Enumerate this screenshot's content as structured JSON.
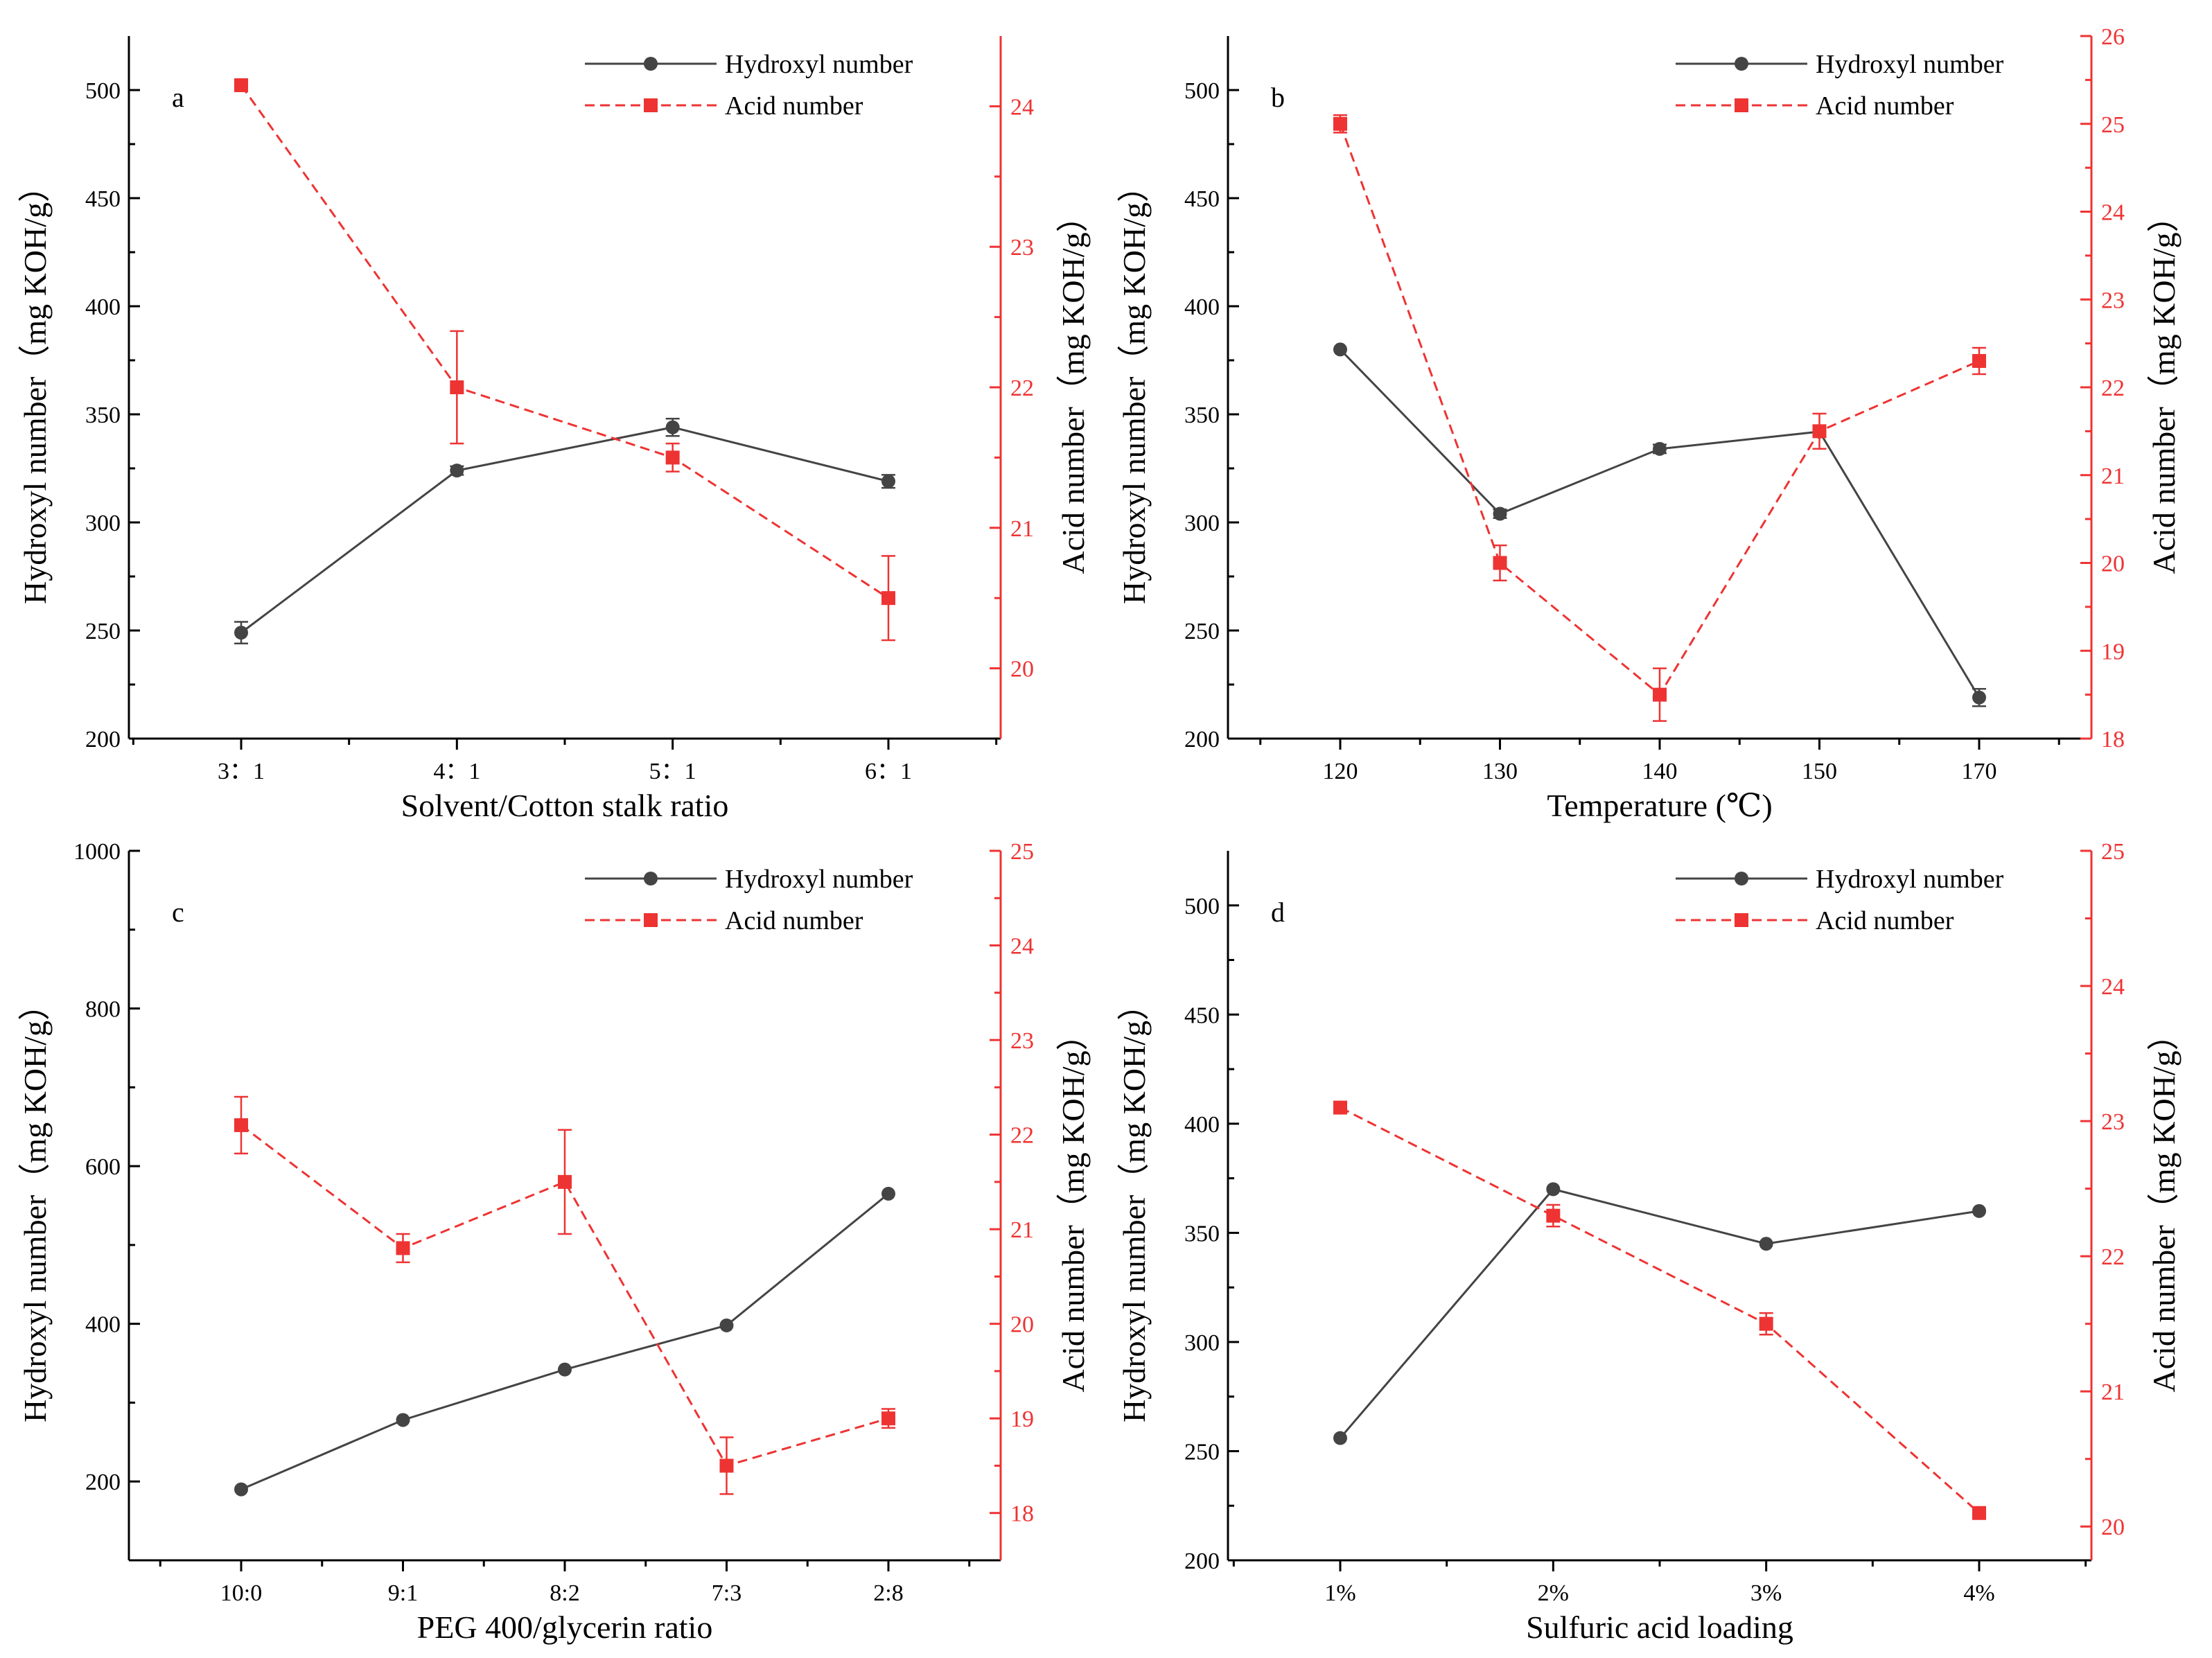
{
  "colors": {
    "hydroxyl": "#444444",
    "acid": "#ee3333",
    "axis": "#000000"
  },
  "legend_labels": {
    "hydroxyl": "Hydroxyl number",
    "acid": "Acid number"
  },
  "chart_data": [
    {
      "type": "line",
      "panel_label": "a",
      "xlabel": "Solvent/Cotton stalk ratio",
      "ylabel_left": "Hydroxyl number（mg KOH/g）",
      "ylabel_right": "Acid number（mg KOH/g）",
      "categories": [
        "3：1",
        "4：1",
        "5：1",
        "6：1"
      ],
      "ylim_left": [
        200,
        525
      ],
      "yticks_left": [
        200,
        250,
        300,
        350,
        400,
        450,
        500
      ],
      "ylim_right": [
        19.5,
        24.5
      ],
      "yticks_right": [
        20,
        21,
        22,
        23,
        24
      ],
      "legend_position": "top-right",
      "series": [
        {
          "name": "Hydroxyl number",
          "axis": "left",
          "marker": "circle",
          "style": "solid",
          "values": [
            249,
            324,
            344,
            319
          ],
          "errors": [
            5,
            2,
            4,
            3
          ]
        },
        {
          "name": "Acid number",
          "axis": "right",
          "marker": "square",
          "style": "dashed",
          "values": [
            24.15,
            22.0,
            21.5,
            20.5
          ],
          "errors": [
            0,
            0.4,
            0.1,
            0.3
          ]
        }
      ]
    },
    {
      "type": "line",
      "panel_label": "b",
      "xlabel": "Temperature (℃)",
      "ylabel_left": "Hydroxyl number（mg KOH/g）",
      "ylabel_right": "Acid number（mg KOH/g）",
      "categories": [
        "120",
        "130",
        "140",
        "150",
        "170"
      ],
      "ylim_left": [
        200,
        525
      ],
      "yticks_left": [
        200,
        250,
        300,
        350,
        400,
        450,
        500
      ],
      "ylim_right": [
        18,
        26
      ],
      "yticks_right": [
        18,
        19,
        20,
        21,
        22,
        23,
        24,
        25,
        26
      ],
      "legend_position": "top-right",
      "series": [
        {
          "name": "Hydroxyl number",
          "axis": "left",
          "marker": "circle",
          "style": "solid",
          "values": [
            380,
            304,
            334,
            342,
            219
          ],
          "errors": [
            0,
            2,
            2,
            2,
            4
          ]
        },
        {
          "name": "Acid number",
          "axis": "right",
          "marker": "square",
          "style": "dashed",
          "values": [
            25.0,
            20.0,
            18.5,
            21.5,
            22.3
          ],
          "errors": [
            0.1,
            0.2,
            0.3,
            0.2,
            0.15
          ]
        }
      ]
    },
    {
      "type": "line",
      "panel_label": "c",
      "xlabel": "PEG 400/glycerin ratio",
      "ylabel_left": "Hydroxyl number（mg KOH/g）",
      "ylabel_right": "Acid number（mg KOH/g）",
      "categories": [
        "10:0",
        "9:1",
        "8:2",
        "7:3",
        "2:8"
      ],
      "ylim_left": [
        100,
        1000
      ],
      "yticks_left": [
        200,
        400,
        600,
        800,
        1000
      ],
      "ylim_right": [
        17.5,
        25
      ],
      "yticks_right": [
        18,
        19,
        20,
        21,
        22,
        23,
        24,
        25
      ],
      "legend_position": "top-right",
      "series": [
        {
          "name": "Hydroxyl number",
          "axis": "left",
          "marker": "circle",
          "style": "solid",
          "values": [
            190,
            278,
            342,
            398,
            565
          ],
          "errors": [
            0,
            0,
            0,
            0,
            0
          ]
        },
        {
          "name": "Acid number",
          "axis": "right",
          "marker": "square",
          "style": "dashed",
          "values": [
            22.1,
            20.8,
            21.5,
            18.5,
            19.0
          ],
          "errors": [
            0.3,
            0.15,
            0.55,
            0.3,
            0.1
          ]
        }
      ]
    },
    {
      "type": "line",
      "panel_label": "d",
      "xlabel": "Sulfuric acid loading",
      "ylabel_left": "Hydroxyl number（mg KOH/g）",
      "ylabel_right": "Acid number（mg KOH/g）",
      "categories": [
        "1%",
        "2%",
        "3%",
        "4%"
      ],
      "ylim_left": [
        200,
        525
      ],
      "yticks_left": [
        200,
        250,
        300,
        350,
        400,
        450,
        500
      ],
      "ylim_right": [
        19.75,
        25
      ],
      "yticks_right": [
        20,
        21,
        22,
        23,
        24,
        25
      ],
      "legend_position": "top-right",
      "series": [
        {
          "name": "Hydroxyl number",
          "axis": "left",
          "marker": "circle",
          "style": "solid",
          "values": [
            256,
            370,
            345,
            360
          ],
          "errors": [
            0,
            0,
            0,
            0
          ]
        },
        {
          "name": "Acid number",
          "axis": "right",
          "marker": "square",
          "style": "dashed",
          "values": [
            23.1,
            22.3,
            21.5,
            20.1
          ],
          "errors": [
            0,
            0.08,
            0.08,
            0
          ]
        }
      ]
    }
  ]
}
